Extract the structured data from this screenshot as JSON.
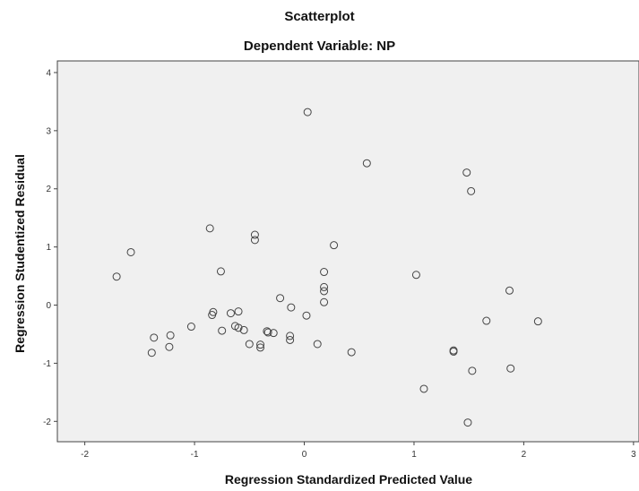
{
  "chart_data": {
    "type": "scatter",
    "title": "Scatterplot",
    "subtitle": "Dependent Variable: NP",
    "xlabel": "Regression Standardized Predicted Value",
    "ylabel": "Regression Studentized Residual",
    "xlim": [
      -2.25,
      3.05
    ],
    "ylim": [
      -2.35,
      4.2
    ],
    "xticks": [
      -2,
      -1,
      0,
      1,
      2,
      3
    ],
    "yticks": [
      -2,
      -1,
      0,
      1,
      2,
      3,
      4
    ],
    "xtick_labels": [
      "-2",
      "-1",
      "0",
      "1",
      "2",
      "3"
    ],
    "ytick_labels": [
      "-2",
      "-1",
      "0",
      "1",
      "2",
      "3",
      "4"
    ],
    "grid": false,
    "colors": {
      "plot_background": "#f0f0f0",
      "marker": "#444444"
    },
    "points": [
      {
        "x": 0.03,
        "y": 3.32
      },
      {
        "x": 0.57,
        "y": 2.44
      },
      {
        "x": 1.48,
        "y": 2.28
      },
      {
        "x": 1.52,
        "y": 1.96
      },
      {
        "x": -0.86,
        "y": 1.32
      },
      {
        "x": -0.45,
        "y": 1.21
      },
      {
        "x": -0.45,
        "y": 1.12
      },
      {
        "x": 0.27,
        "y": 1.03
      },
      {
        "x": -1.58,
        "y": 0.91
      },
      {
        "x": -0.76,
        "y": 0.58
      },
      {
        "x": 0.18,
        "y": 0.57
      },
      {
        "x": 1.02,
        "y": 0.52
      },
      {
        "x": -1.71,
        "y": 0.49
      },
      {
        "x": 0.18,
        "y": 0.31
      },
      {
        "x": 0.18,
        "y": 0.24
      },
      {
        "x": 1.87,
        "y": 0.25
      },
      {
        "x": -0.22,
        "y": 0.12
      },
      {
        "x": 0.18,
        "y": 0.05
      },
      {
        "x": -0.12,
        "y": -0.04
      },
      {
        "x": -0.83,
        "y": -0.12
      },
      {
        "x": -0.84,
        "y": -0.17
      },
      {
        "x": -0.67,
        "y": -0.14
      },
      {
        "x": -0.6,
        "y": -0.11
      },
      {
        "x": 0.02,
        "y": -0.18
      },
      {
        "x": 1.66,
        "y": -0.27
      },
      {
        "x": 2.13,
        "y": -0.28
      },
      {
        "x": -1.03,
        "y": -0.37
      },
      {
        "x": -0.63,
        "y": -0.36
      },
      {
        "x": -0.6,
        "y": -0.39
      },
      {
        "x": -0.55,
        "y": -0.43
      },
      {
        "x": -0.75,
        "y": -0.44
      },
      {
        "x": -0.34,
        "y": -0.45
      },
      {
        "x": -0.33,
        "y": -0.47
      },
      {
        "x": -0.28,
        "y": -0.48
      },
      {
        "x": -1.22,
        "y": -0.52
      },
      {
        "x": -1.37,
        "y": -0.56
      },
      {
        "x": -0.13,
        "y": -0.53
      },
      {
        "x": -0.13,
        "y": -0.6
      },
      {
        "x": -0.5,
        "y": -0.67
      },
      {
        "x": -0.4,
        "y": -0.68
      },
      {
        "x": -0.4,
        "y": -0.73
      },
      {
        "x": 0.12,
        "y": -0.67
      },
      {
        "x": -1.23,
        "y": -0.72
      },
      {
        "x": -1.39,
        "y": -0.82
      },
      {
        "x": 0.43,
        "y": -0.81
      },
      {
        "x": 1.36,
        "y": -0.78
      },
      {
        "x": 1.36,
        "y": -0.8
      },
      {
        "x": 1.88,
        "y": -1.09
      },
      {
        "x": 1.53,
        "y": -1.13
      },
      {
        "x": 1.09,
        "y": -1.44
      },
      {
        "x": 1.49,
        "y": -2.02
      }
    ]
  }
}
